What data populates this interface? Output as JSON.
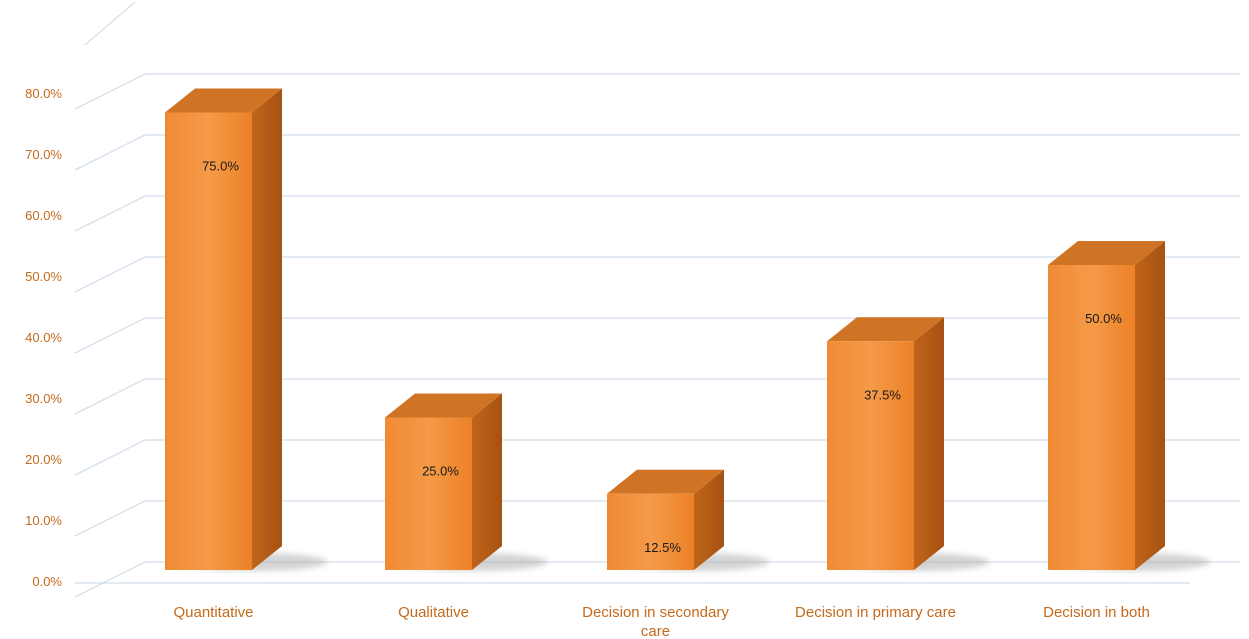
{
  "chart_data": {
    "type": "bar",
    "categories": [
      [
        "Quantitative"
      ],
      [
        "Qualitative"
      ],
      [
        "Decision in secondary",
        "care"
      ],
      [
        "Decision in primary care"
      ],
      [
        "Decision in both"
      ]
    ],
    "values": [
      75.0,
      25.0,
      12.5,
      37.5,
      50.0
    ],
    "data_labels": [
      "75.0%",
      "25.0%",
      "12.5%",
      "37.5%",
      "50.0%"
    ],
    "ylim": [
      0,
      80
    ],
    "yticks": [
      "0.0%",
      "10.0%",
      "20.0%",
      "30.0%",
      "40.0%",
      "50.0%",
      "60.0%",
      "70.0%",
      "80.0%"
    ],
    "title": "",
    "xlabel": "",
    "ylabel": "",
    "grid": true,
    "legend": "none",
    "style": "3d-column"
  },
  "colors": {
    "bar_front": "#f0862f",
    "bar_front_light": "#f59a48",
    "bar_side": "#b85e16",
    "bar_top": "#cf7424",
    "tick_text": "#c46a1c",
    "gridline": "#c9d6e6",
    "data_label": "#1a1a1a"
  }
}
